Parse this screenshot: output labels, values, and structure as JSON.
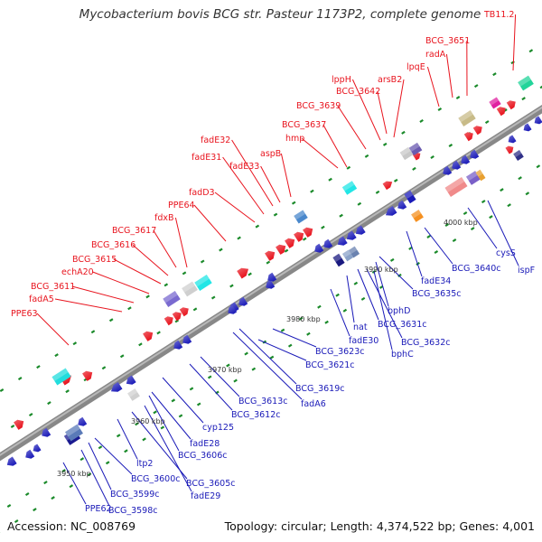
{
  "title": "Mycobacterium bovis BCG str. Pasteur 1173P2, complete genome",
  "footer": {
    "accession": "Accession: NC_008769",
    "summary": "Topology: circular; Length: 4,374,522 bp; Genes: 4,001"
  },
  "colors": {
    "forward": "#e8141e",
    "reverse": "#1a1ab8",
    "backbone": "#909090",
    "tick": "#1a8a2a"
  },
  "scale_labels": [
    "3950 kbp",
    "3960 kbp",
    "3970 kbp",
    "3980 kbp",
    "3990 kbp",
    "4000 kbp"
  ],
  "forward_labels": [
    "PPE63",
    "fadA5",
    "BCG_3611",
    "echA20",
    "BCG_3615",
    "BCG_3616",
    "BCG_3617",
    "fdxB",
    "PPE64",
    "fadD3",
    "fadE31",
    "fadE32",
    "fadE33",
    "aspB",
    "hmp",
    "BCG_3637",
    "BCG_3639",
    "lppH",
    "BCG_3642",
    "arsB2",
    "lpqE",
    "radA",
    "BCG_3651",
    "TB11.2"
  ],
  "reverse_labels": [
    "PPE62",
    "BCG_3598c",
    "BCG_3599c",
    "BCG_3600c",
    "ltp2",
    "BCG_3605c",
    "fadE29",
    "BCG_3606c",
    "fadE28",
    "cyp125",
    "BCG_3612c",
    "BCG_3613c",
    "fadA6",
    "BCG_3619c",
    "BCG_3621c",
    "BCG_3623c",
    "fadE30",
    "nat",
    "BCG_3631c",
    "BCG_3632c",
    "bphC",
    "bphD",
    "BCG_3635c",
    "fadE34",
    "BCG_3640c",
    "cysS",
    "ispF"
  ]
}
